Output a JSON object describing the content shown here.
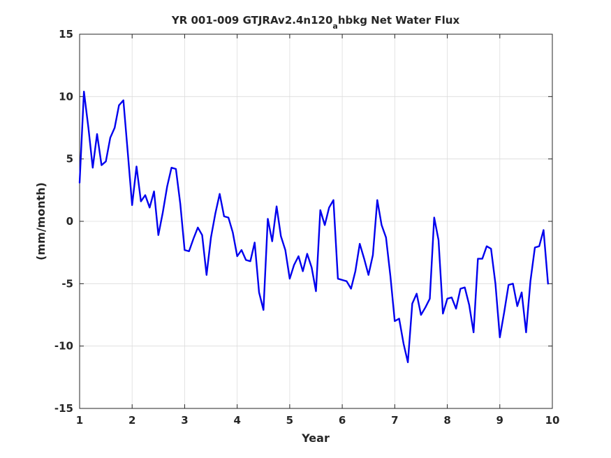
{
  "chart_data": {
    "type": "line",
    "title": "YR 001-009 GTJRAv2.4n120",
    "title_subscript": "a",
    "title_suffix": "hbkg Net Water Flux",
    "xlabel": "Year",
    "ylabel": "(mm/month)",
    "xlim": [
      1,
      10
    ],
    "ylim": [
      -15,
      15
    ],
    "xticks": [
      1,
      2,
      3,
      4,
      5,
      6,
      7,
      8,
      9,
      10
    ],
    "yticks": [
      15,
      10,
      5,
      0,
      -5,
      -10,
      -15
    ],
    "grid": true,
    "line_color": "#0000ee",
    "series": [
      {
        "x": [
          1.0,
          1.083,
          1.167,
          1.25,
          1.333,
          1.417,
          1.5,
          1.583,
          1.667,
          1.75,
          1.833,
          1.917,
          2.0,
          2.083,
          2.167,
          2.25,
          2.333,
          2.417,
          2.5,
          2.583,
          2.667,
          2.75,
          2.833,
          2.917,
          3.0,
          3.083,
          3.167,
          3.25,
          3.333,
          3.417,
          3.5,
          3.583,
          3.667,
          3.75,
          3.833,
          3.917,
          4.0,
          4.083,
          4.167,
          4.25,
          4.333,
          4.417,
          4.5,
          4.583,
          4.667,
          4.75,
          4.833,
          4.917,
          5.0,
          5.083,
          5.167,
          5.25,
          5.333,
          5.417,
          5.5,
          5.583,
          5.667,
          5.75,
          5.833,
          5.917,
          6.0,
          6.083,
          6.167,
          6.25,
          6.333,
          6.417,
          6.5,
          6.583,
          6.667,
          6.75,
          6.833,
          6.917,
          7.0,
          7.083,
          7.167,
          7.25,
          7.333,
          7.417,
          7.5,
          7.583,
          7.667,
          7.75,
          7.833,
          7.917,
          8.0,
          8.083,
          8.167,
          8.25,
          8.333,
          8.417,
          8.5,
          8.583,
          8.667,
          8.75,
          8.833,
          8.917,
          9.0,
          9.083,
          9.167,
          9.25,
          9.333,
          9.417,
          9.5,
          9.583,
          9.667,
          9.75,
          9.833,
          9.917
        ],
        "values": [
          3.1,
          10.4,
          7.5,
          4.3,
          7.0,
          4.5,
          4.8,
          6.7,
          7.5,
          9.3,
          9.7,
          5.5,
          1.3,
          4.4,
          1.6,
          2.1,
          1.1,
          2.4,
          -1.1,
          0.7,
          2.8,
          4.3,
          4.2,
          1.4,
          -2.3,
          -2.4,
          -1.4,
          -0.5,
          -1.1,
          -4.3,
          -1.3,
          0.6,
          2.2,
          0.4,
          0.3,
          -0.9,
          -2.8,
          -2.3,
          -3.1,
          -3.2,
          -1.7,
          -5.7,
          -7.1,
          0.2,
          -1.6,
          1.2,
          -1.2,
          -2.3,
          -4.6,
          -3.5,
          -2.8,
          -4.0,
          -2.6,
          -3.7,
          -5.6,
          0.9,
          -0.3,
          1.1,
          1.7,
          -4.6,
          -4.7,
          -4.8,
          -5.4,
          -4.0,
          -1.8,
          -3.0,
          -4.3,
          -2.7,
          1.7,
          -0.3,
          -1.3,
          -4.4,
          -8.0,
          -7.8,
          -9.8,
          -11.3,
          -6.6,
          -5.8,
          -7.5,
          -6.9,
          -6.2,
          0.3,
          -1.5,
          -7.4,
          -6.2,
          -6.1,
          -7.0,
          -5.4,
          -5.3,
          -6.7,
          -8.9,
          -3.0,
          -3.0,
          -2.0,
          -2.2,
          -5.0,
          -9.3,
          -7.3,
          -5.1,
          -5.0,
          -6.8,
          -5.7,
          -8.9,
          -4.8,
          -2.1,
          -2.0,
          -0.7,
          -5.0
        ]
      }
    ]
  }
}
